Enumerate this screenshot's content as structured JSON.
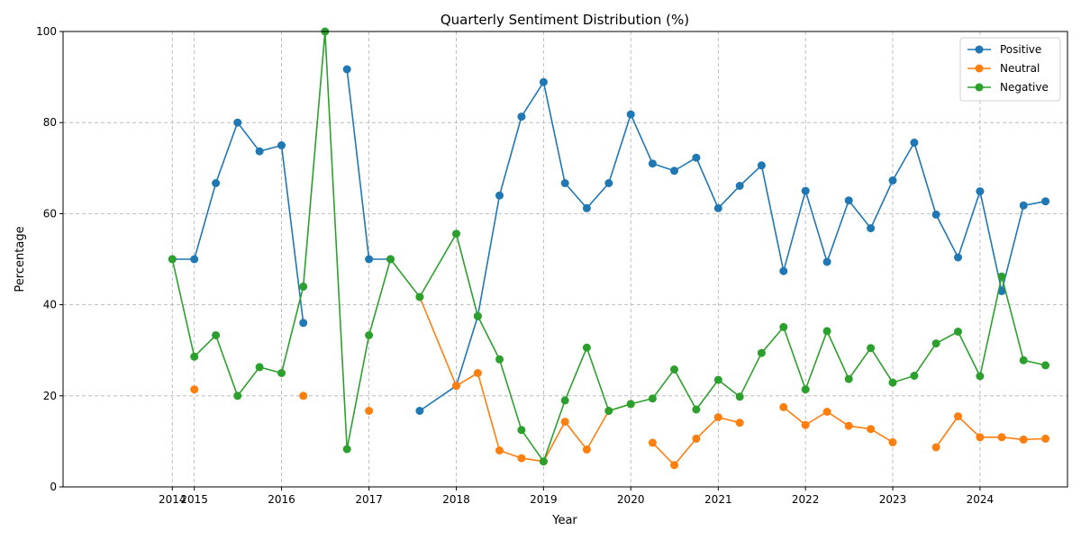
{
  "chart_data": {
    "type": "line",
    "title": "Quarterly Sentiment Distribution (%)",
    "xlabel": "Year",
    "ylabel": "Percentage",
    "ylim": [
      0,
      100
    ],
    "yticks": [
      "0",
      "20",
      "40",
      "60",
      "80",
      "100"
    ],
    "xlim": [
      "2013-07-01",
      "2025-01-01"
    ],
    "xticks": [
      {
        "date": "2014-10-01",
        "label": "2014"
      },
      {
        "date": "2015-01-01",
        "label": "2015"
      },
      {
        "date": "2016-01-01",
        "label": "2016"
      },
      {
        "date": "2017-01-01",
        "label": "2017"
      },
      {
        "date": "2018-01-01",
        "label": "2018"
      },
      {
        "date": "2019-01-01",
        "label": "2019"
      },
      {
        "date": "2020-01-01",
        "label": "2020"
      },
      {
        "date": "2021-01-01",
        "label": "2021"
      },
      {
        "date": "2022-01-01",
        "label": "2022"
      },
      {
        "date": "2023-01-01",
        "label": "2023"
      },
      {
        "date": "2024-01-01",
        "label": "2024"
      }
    ],
    "grid": true,
    "legend_position": "top-right",
    "series": [
      {
        "name": "Positive",
        "color": "#1f77b4",
        "points": [
          [
            "2014-10-01",
            50
          ],
          [
            "2015-01-01",
            50
          ],
          [
            "2015-04-01",
            66.7
          ],
          [
            "2015-07-01",
            80
          ],
          [
            "2015-10-01",
            73.7
          ],
          [
            "2016-01-01",
            75
          ],
          [
            "2016-04-01",
            36
          ],
          [
            "2016-07-01",
            null
          ],
          [
            "2016-10-01",
            91.7
          ],
          [
            "2017-01-01",
            50
          ],
          [
            "2017-04-01",
            50
          ],
          [
            "2017-07-01",
            null
          ],
          [
            "2017-08-01",
            16.7
          ],
          [
            "2018-01-01",
            22.2
          ],
          [
            "2018-04-01",
            37.5
          ],
          [
            "2018-07-01",
            64
          ],
          [
            "2018-10-01",
            81.3
          ],
          [
            "2019-01-01",
            88.9
          ],
          [
            "2019-04-01",
            66.7
          ],
          [
            "2019-07-01",
            61.2
          ],
          [
            "2019-10-01",
            66.7
          ],
          [
            "2020-01-01",
            81.8
          ],
          [
            "2020-04-01",
            71
          ],
          [
            "2020-07-01",
            69.4
          ],
          [
            "2020-10-01",
            72.3
          ],
          [
            "2021-01-01",
            61.2
          ],
          [
            "2021-04-01",
            66.1
          ],
          [
            "2021-07-01",
            70.6
          ],
          [
            "2021-10-01",
            47.4
          ],
          [
            "2022-01-01",
            65
          ],
          [
            "2022-04-01",
            49.4
          ],
          [
            "2022-07-01",
            62.9
          ],
          [
            "2022-10-01",
            56.8
          ],
          [
            "2023-01-01",
            67.3
          ],
          [
            "2023-04-01",
            75.6
          ],
          [
            "2023-07-01",
            59.8
          ],
          [
            "2023-10-01",
            50.4
          ],
          [
            "2024-01-01",
            64.9
          ],
          [
            "2024-04-01",
            43
          ],
          [
            "2024-07-01",
            61.8
          ],
          [
            "2024-10-01",
            62.7
          ]
        ]
      },
      {
        "name": "Neutral",
        "color": "#ff7f0e",
        "points": [
          [
            "2015-01-01",
            21.4
          ],
          [
            "2015-04-01",
            null
          ],
          [
            "2016-04-01",
            20
          ],
          [
            "2016-07-01",
            null
          ],
          [
            "2017-01-01",
            16.7
          ],
          [
            "2017-04-01",
            null
          ],
          [
            "2017-08-01",
            41.7
          ],
          [
            "2018-01-01",
            22.2
          ],
          [
            "2018-04-01",
            25
          ],
          [
            "2018-07-01",
            8
          ],
          [
            "2018-10-01",
            6.3
          ],
          [
            "2019-01-01",
            5.6
          ],
          [
            "2019-04-01",
            14.3
          ],
          [
            "2019-07-01",
            8.2
          ],
          [
            "2019-10-01",
            16.7
          ],
          [
            "2020-01-01",
            18.2
          ],
          [
            "2020-02-01",
            null
          ],
          [
            "2020-04-01",
            9.7
          ],
          [
            "2020-07-01",
            4.8
          ],
          [
            "2020-10-01",
            10.6
          ],
          [
            "2021-01-01",
            15.3
          ],
          [
            "2021-04-01",
            14.1
          ],
          [
            "2021-05-01",
            null
          ],
          [
            "2021-10-01",
            17.5
          ],
          [
            "2022-01-01",
            13.6
          ],
          [
            "2022-04-01",
            16.5
          ],
          [
            "2022-07-01",
            13.4
          ],
          [
            "2022-10-01",
            12.7
          ],
          [
            "2023-01-01",
            9.8
          ],
          [
            "2023-02-01",
            null
          ],
          [
            "2023-07-01",
            8.7
          ],
          [
            "2023-10-01",
            15.5
          ],
          [
            "2024-01-01",
            10.9
          ],
          [
            "2024-04-01",
            10.9
          ],
          [
            "2024-07-01",
            10.4
          ],
          [
            "2024-10-01",
            10.6
          ]
        ]
      },
      {
        "name": "Negative",
        "color": "#2ca02c",
        "points": [
          [
            "2014-10-01",
            50
          ],
          [
            "2015-01-01",
            28.6
          ],
          [
            "2015-04-01",
            33.3
          ],
          [
            "2015-07-01",
            20
          ],
          [
            "2015-10-01",
            26.3
          ],
          [
            "2016-01-01",
            25
          ],
          [
            "2016-04-01",
            44
          ],
          [
            "2016-07-01",
            100
          ],
          [
            "2016-10-01",
            8.3
          ],
          [
            "2017-01-01",
            33.3
          ],
          [
            "2017-04-01",
            50
          ],
          [
            "2017-08-01",
            41.7
          ],
          [
            "2018-01-01",
            55.6
          ],
          [
            "2018-04-01",
            37.5
          ],
          [
            "2018-07-01",
            28
          ],
          [
            "2018-10-01",
            12.5
          ],
          [
            "2019-01-01",
            5.6
          ],
          [
            "2019-04-01",
            19
          ],
          [
            "2019-07-01",
            30.6
          ],
          [
            "2019-10-01",
            16.7
          ],
          [
            "2020-01-01",
            18.2
          ],
          [
            "2020-04-01",
            19.4
          ],
          [
            "2020-07-01",
            25.8
          ],
          [
            "2020-10-01",
            17
          ],
          [
            "2021-01-01",
            23.5
          ],
          [
            "2021-04-01",
            19.8
          ],
          [
            "2021-07-01",
            29.4
          ],
          [
            "2021-10-01",
            35.1
          ],
          [
            "2022-01-01",
            21.4
          ],
          [
            "2022-04-01",
            34.2
          ],
          [
            "2022-07-01",
            23.7
          ],
          [
            "2022-10-01",
            30.5
          ],
          [
            "2023-01-01",
            22.9
          ],
          [
            "2023-04-01",
            24.4
          ],
          [
            "2023-07-01",
            31.5
          ],
          [
            "2023-10-01",
            34.1
          ],
          [
            "2024-01-01",
            24.3
          ],
          [
            "2024-04-01",
            46.2
          ],
          [
            "2024-07-01",
            27.8
          ],
          [
            "2024-10-01",
            26.7
          ]
        ]
      }
    ]
  }
}
